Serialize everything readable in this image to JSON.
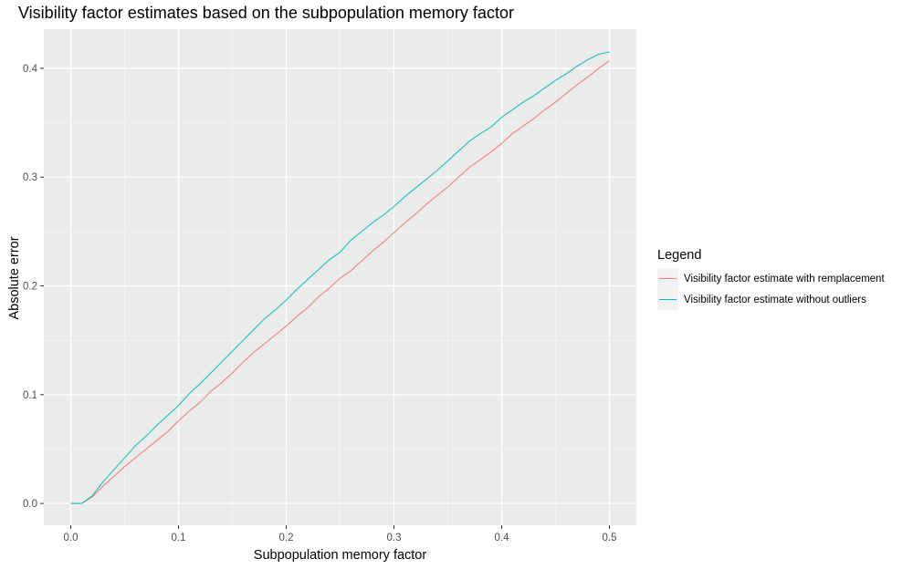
{
  "chart_data": {
    "type": "line",
    "title": "Visibility factor estimates based on the subpopulation memory factor",
    "xlabel": "Subpopulation memory factor",
    "ylabel": "Absolute error",
    "xlim": [
      -0.025,
      0.525
    ],
    "ylim": [
      -0.02,
      0.436
    ],
    "x_ticks": [
      0.0,
      0.1,
      0.2,
      0.3,
      0.4,
      0.5
    ],
    "x_tick_labels": [
      "0.0",
      "0.1",
      "0.2",
      "0.3",
      "0.4",
      "0.5"
    ],
    "y_ticks": [
      0.0,
      0.1,
      0.2,
      0.3,
      0.4
    ],
    "y_tick_labels": [
      "0.0",
      "0.1",
      "0.2",
      "0.3",
      "0.4"
    ],
    "grid": true,
    "legend": {
      "title": "Legend",
      "placement": "right"
    },
    "x": [
      0.0,
      0.01,
      0.02,
      0.03,
      0.04,
      0.05,
      0.06,
      0.07,
      0.08,
      0.09,
      0.1,
      0.11,
      0.12,
      0.13,
      0.14,
      0.15,
      0.16,
      0.17,
      0.18,
      0.19,
      0.2,
      0.21,
      0.22,
      0.23,
      0.24,
      0.25,
      0.26,
      0.27,
      0.28,
      0.29,
      0.3,
      0.31,
      0.32,
      0.33,
      0.34,
      0.35,
      0.36,
      0.37,
      0.38,
      0.39,
      0.4,
      0.41,
      0.42,
      0.43,
      0.44,
      0.45,
      0.46,
      0.47,
      0.48,
      0.49,
      0.5
    ],
    "series": [
      {
        "name": "Visibility factor estimate with remplacement",
        "color": "#F8766D",
        "values": [
          0.0,
          0.0,
          0.006,
          0.016,
          0.025,
          0.034,
          0.042,
          0.05,
          0.058,
          0.066,
          0.076,
          0.085,
          0.093,
          0.103,
          0.111,
          0.12,
          0.13,
          0.139,
          0.147,
          0.155,
          0.163,
          0.172,
          0.18,
          0.19,
          0.198,
          0.207,
          0.214,
          0.223,
          0.232,
          0.24,
          0.249,
          0.258,
          0.266,
          0.275,
          0.283,
          0.291,
          0.3,
          0.309,
          0.316,
          0.323,
          0.331,
          0.34,
          0.347,
          0.354,
          0.362,
          0.369,
          0.377,
          0.385,
          0.392,
          0.4,
          0.407
        ]
      },
      {
        "name": "Visibility factor estimate without outliers",
        "color": "#00BFC4",
        "values": [
          0.0,
          0.0,
          0.007,
          0.02,
          0.031,
          0.042,
          0.053,
          0.062,
          0.072,
          0.081,
          0.09,
          0.101,
          0.11,
          0.12,
          0.13,
          0.14,
          0.15,
          0.16,
          0.17,
          0.178,
          0.187,
          0.197,
          0.206,
          0.215,
          0.224,
          0.231,
          0.242,
          0.25,
          0.258,
          0.265,
          0.273,
          0.282,
          0.29,
          0.298,
          0.306,
          0.315,
          0.324,
          0.333,
          0.34,
          0.346,
          0.355,
          0.362,
          0.369,
          0.375,
          0.382,
          0.389,
          0.395,
          0.402,
          0.408,
          0.413,
          0.415
        ]
      }
    ]
  }
}
